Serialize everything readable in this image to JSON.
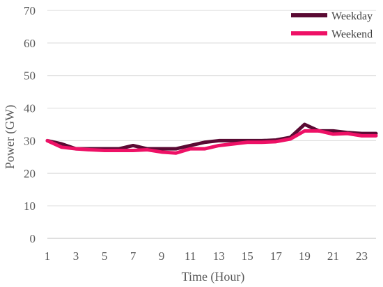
{
  "chart_data": {
    "type": "line",
    "xlabel": "Time (Hour)",
    "ylabel": "Power (GW)",
    "ylim": [
      0,
      70
    ],
    "yticks": [
      "0",
      "10",
      "20",
      "30",
      "40",
      "50",
      "60",
      "70"
    ],
    "xlim": [
      1,
      24
    ],
    "xticks": [
      "1",
      "3",
      "5",
      "7",
      "9",
      "11",
      "13",
      "15",
      "17",
      "19",
      "21",
      "23"
    ],
    "x": [
      1,
      2,
      3,
      4,
      5,
      6,
      7,
      8,
      9,
      10,
      11,
      12,
      13,
      14,
      15,
      16,
      17,
      18,
      19,
      20,
      21,
      22,
      23,
      24
    ],
    "grid": true,
    "legend_position": "top-right",
    "series": [
      {
        "name": "Weekday",
        "color": "#5a0a33",
        "values": [
          30,
          29,
          27.5,
          27.5,
          27.5,
          27.5,
          28.5,
          27.5,
          27.5,
          27.5,
          28.5,
          29.5,
          30,
          30,
          30,
          30,
          30.2,
          31,
          35,
          33,
          33,
          32.5,
          32.2,
          32.2
        ]
      },
      {
        "name": "Weekend",
        "color": "#ee1166",
        "values": [
          30,
          28,
          27.5,
          27.2,
          27,
          27,
          27,
          27.2,
          26.5,
          26.2,
          27.5,
          27.5,
          28.5,
          29,
          29.5,
          29.5,
          29.7,
          30.5,
          33,
          33,
          32,
          32.2,
          31.5,
          31.5
        ]
      }
    ]
  }
}
